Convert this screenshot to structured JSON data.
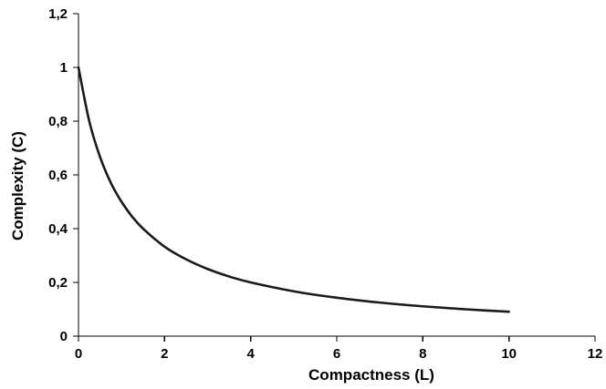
{
  "chart_data": {
    "type": "line",
    "title": "",
    "xlabel": "Compactness (L)",
    "ylabel": "Complexity (C)",
    "xlim": [
      0,
      12
    ],
    "ylim": [
      0,
      1.2
    ],
    "x_ticks": [
      0,
      2,
      4,
      6,
      8,
      10,
      12
    ],
    "y_ticks": [
      0,
      0.2,
      0.4,
      0.6,
      0.8,
      1,
      1.2
    ],
    "x_tick_labels": [
      "0",
      "2",
      "4",
      "6",
      "8",
      "10",
      "12"
    ],
    "y_tick_labels": [
      "0",
      "0,2",
      "0,4",
      "0,6",
      "0,8",
      "1",
      "1,2"
    ],
    "grid": false,
    "legend": "none",
    "series": [
      {
        "color": "#1a1a1a",
        "x": [
          0,
          0.25,
          0.5,
          0.75,
          1,
          1.25,
          1.5,
          2,
          2.5,
          3,
          3.5,
          4,
          5,
          6,
          7,
          8,
          9,
          10
        ],
        "y": [
          1,
          0.8,
          0.667,
          0.571,
          0.5,
          0.444,
          0.4,
          0.333,
          0.286,
          0.25,
          0.222,
          0.2,
          0.167,
          0.143,
          0.125,
          0.111,
          0.1,
          0.091
        ]
      }
    ]
  }
}
